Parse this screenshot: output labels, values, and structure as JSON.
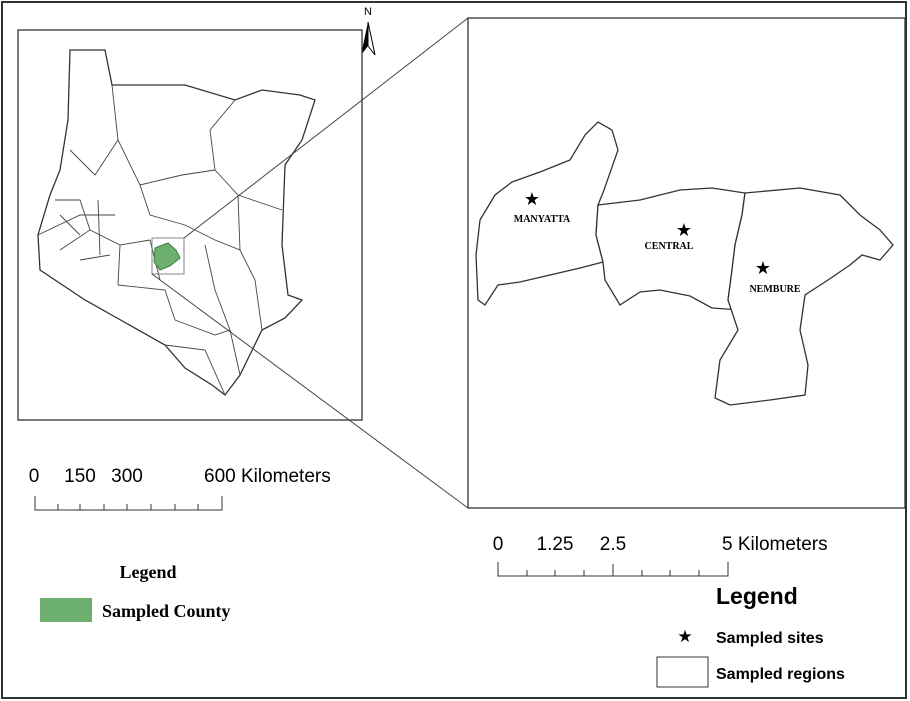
{
  "north": "N",
  "overview_map": {
    "scale_bar": {
      "labels": [
        "0",
        "150",
        "300",
        "600 Kilometers"
      ]
    },
    "legend": {
      "title": "Legend",
      "items": [
        "Sampled County"
      ]
    }
  },
  "detail_map": {
    "regions": [
      "MANYATTA",
      "CENTRAL",
      "NEMBURE"
    ],
    "scale_bar": {
      "labels": [
        "0",
        "1.25",
        "2.5",
        "5 Kilometers"
      ]
    },
    "legend": {
      "title": "Legend",
      "items": [
        "Sampled sites",
        "Sampled regions"
      ]
    }
  }
}
